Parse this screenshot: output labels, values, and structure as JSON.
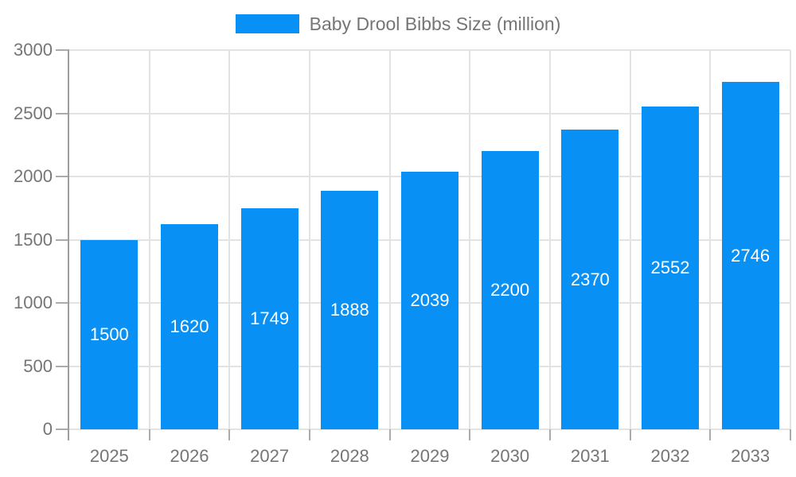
{
  "chart_data": {
    "type": "bar",
    "title": "Baby Drool Bibbs Size (million)",
    "categories": [
      "2025",
      "2026",
      "2027",
      "2028",
      "2029",
      "2030",
      "2031",
      "2032",
      "2033"
    ],
    "values": [
      1500,
      1620,
      1749,
      1888,
      2039,
      2200,
      2370,
      2552,
      2746
    ],
    "series": [
      {
        "name": "Baby Drool Bibbs Size (million)",
        "values": [
          1500,
          1620,
          1749,
          1888,
          2039,
          2200,
          2370,
          2552,
          2746
        ]
      }
    ],
    "xlabel": "",
    "ylabel": "",
    "ylim": [
      0,
      3000
    ],
    "yticks": [
      0,
      500,
      1000,
      1500,
      2000,
      2500,
      3000
    ],
    "grid": "on",
    "legend_position": "top-center",
    "value_labels": "inside-center"
  },
  "legend": {
    "label": "Baby Drool Bibbs Size (million)"
  },
  "colors": {
    "bar": "#0890f5",
    "grid": "#e3e3e3",
    "axis": "#9e9e9e",
    "tick": "#ababab",
    "text": "#757575",
    "value_label": "#ffffff",
    "background": "#ffffff"
  }
}
